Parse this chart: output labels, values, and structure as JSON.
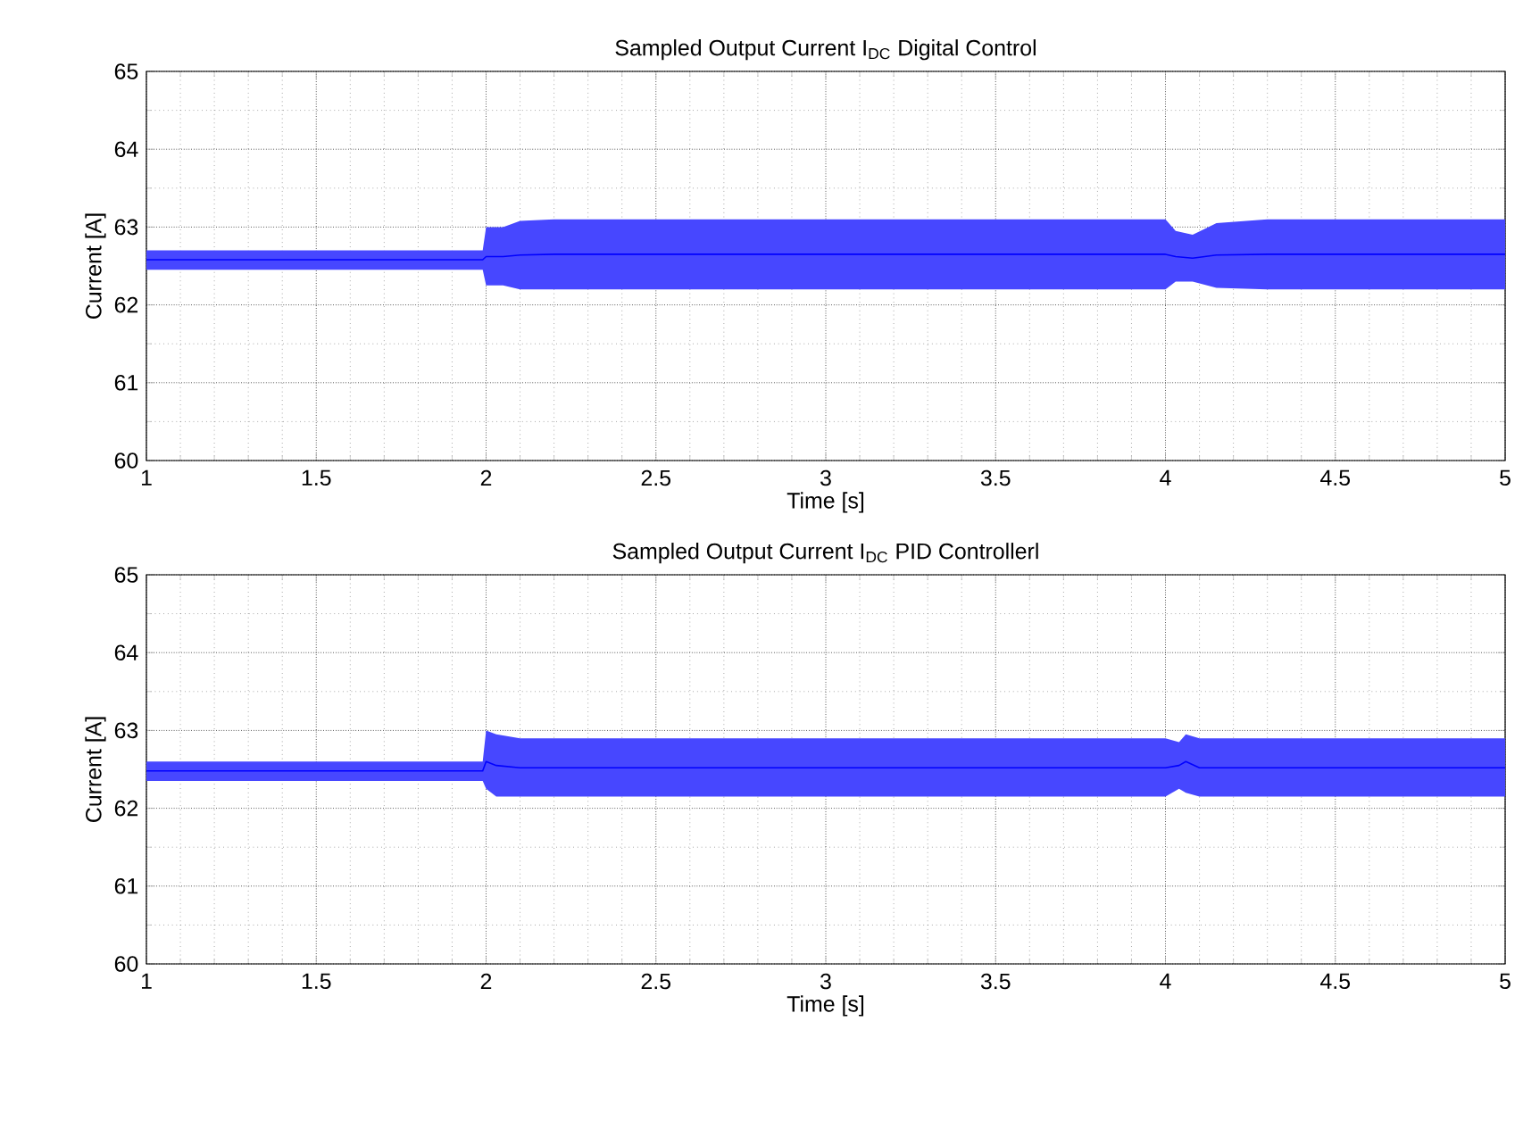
{
  "chart_data": [
    {
      "type": "line",
      "title": "Sampled Output Current I$_{DC}$ Digital Control",
      "xlabel": "Time [s]",
      "ylabel": "Current [A]",
      "xlim": [
        1,
        5
      ],
      "ylim": [
        60,
        65
      ],
      "xticks": [
        1,
        1.5,
        2,
        2.5,
        3,
        3.5,
        4,
        4.5,
        5
      ],
      "yticks": [
        60,
        61,
        62,
        63,
        64,
        65
      ],
      "grid": true,
      "series": [
        {
          "color": "#0000ff",
          "x": [
            1,
            1.99,
            2.0,
            2.05,
            2.1,
            2.2,
            3,
            4,
            4.03,
            4.08,
            4.15,
            4.3,
            5
          ],
          "values": [
            62.58,
            62.58,
            62.62,
            62.62,
            62.64,
            62.65,
            62.65,
            62.65,
            62.62,
            62.6,
            62.64,
            62.65,
            62.65
          ],
          "lower": [
            62.45,
            62.45,
            62.25,
            62.25,
            62.2,
            62.2,
            62.2,
            62.2,
            62.3,
            62.3,
            62.22,
            62.2,
            62.2
          ],
          "upper": [
            62.7,
            62.7,
            63.0,
            63.0,
            63.08,
            63.1,
            63.1,
            63.1,
            62.95,
            62.9,
            63.05,
            63.1,
            63.1
          ]
        }
      ]
    },
    {
      "type": "line",
      "title": "Sampled Output Current I$_{DC}$ PID Controllerl",
      "xlabel": "Time [s]",
      "ylabel": "Current [A]",
      "xlim": [
        1,
        5
      ],
      "ylim": [
        60,
        65
      ],
      "xticks": [
        1,
        1.5,
        2,
        2.5,
        3,
        3.5,
        4,
        4.5,
        5
      ],
      "yticks": [
        60,
        61,
        62,
        63,
        64,
        65
      ],
      "grid": true,
      "series": [
        {
          "color": "#0000ff",
          "x": [
            1,
            1.99,
            2.0,
            2.03,
            2.1,
            2.2,
            3,
            4,
            4.04,
            4.06,
            4.1,
            4.2,
            5
          ],
          "values": [
            62.48,
            62.48,
            62.6,
            62.55,
            62.52,
            62.52,
            62.52,
            62.52,
            62.55,
            62.6,
            62.52,
            62.52,
            62.52
          ],
          "lower": [
            62.35,
            62.35,
            62.25,
            62.15,
            62.15,
            62.15,
            62.15,
            62.15,
            62.25,
            62.2,
            62.15,
            62.15,
            62.15
          ],
          "upper": [
            62.6,
            62.6,
            63.0,
            62.95,
            62.9,
            62.9,
            62.9,
            62.9,
            62.85,
            62.95,
            62.9,
            62.9,
            62.9
          ]
        }
      ]
    }
  ]
}
